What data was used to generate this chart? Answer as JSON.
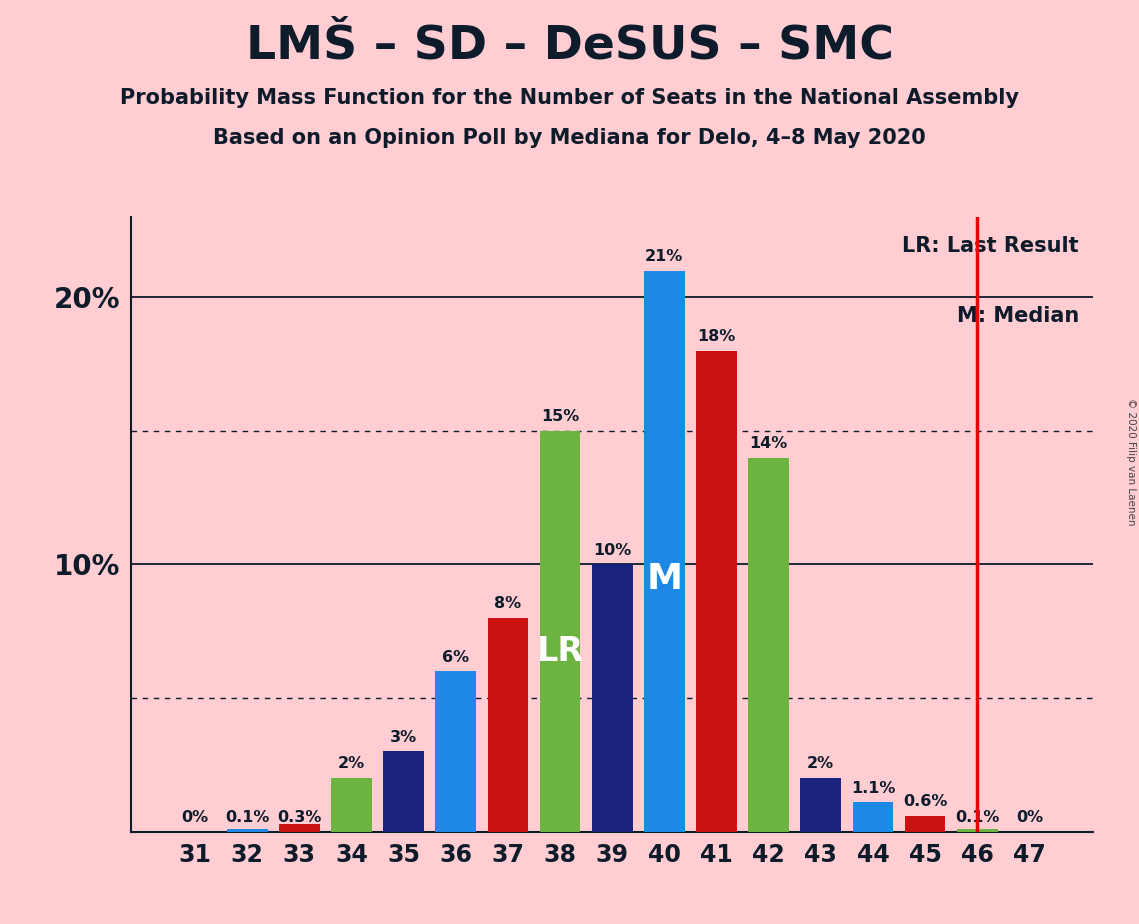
{
  "title": "LMŠ – SD – DeSUS – SMC",
  "subtitle1": "Probability Mass Function for the Number of Seats in the National Assembly",
  "subtitle2": "Based on an Opinion Poll by Mediana for Delo, 4–8 May 2020",
  "copyright": "© 2020 Filip van Laenen",
  "background_color": "#FFCDD2",
  "seats": [
    31,
    32,
    33,
    34,
    35,
    36,
    37,
    38,
    39,
    40,
    41,
    42,
    43,
    44,
    45,
    46,
    47
  ],
  "values": [
    0.0,
    0.1,
    0.3,
    2.0,
    3.0,
    6.0,
    8.0,
    15.0,
    10.0,
    21.0,
    18.0,
    14.0,
    2.0,
    1.1,
    0.6,
    0.1,
    0.0
  ],
  "bar_colors": [
    "#1E88E5",
    "#1E88E5",
    "#CC1111",
    "#6DB33F",
    "#1A237E",
    "#1E88E5",
    "#CC1111",
    "#6DB33F",
    "#1A237E",
    "#1E88E5",
    "#CC1111",
    "#6DB33F",
    "#1A237E",
    "#1E88E5",
    "#CC1111",
    "#6DB33F",
    "#1E88E5"
  ],
  "labels": [
    "0%",
    "0.1%",
    "0.3%",
    "2%",
    "3%",
    "6%",
    "8%",
    "15%",
    "10%",
    "21%",
    "18%",
    "14%",
    "2%",
    "1.1%",
    "0.6%",
    "0.1%",
    "0%"
  ],
  "last_result": 46,
  "median": 40,
  "ylim_max": 23,
  "dotted_lines": [
    5.0,
    15.0
  ],
  "solid_lines": [
    10.0,
    20.0
  ],
  "lr_label_seat": 38,
  "m_label_seat": 40,
  "title_color": "#0D1B2A",
  "label_color": "#0D1B2A",
  "red_line_color": "#EE0000",
  "spine_color": "#0D1B2A"
}
